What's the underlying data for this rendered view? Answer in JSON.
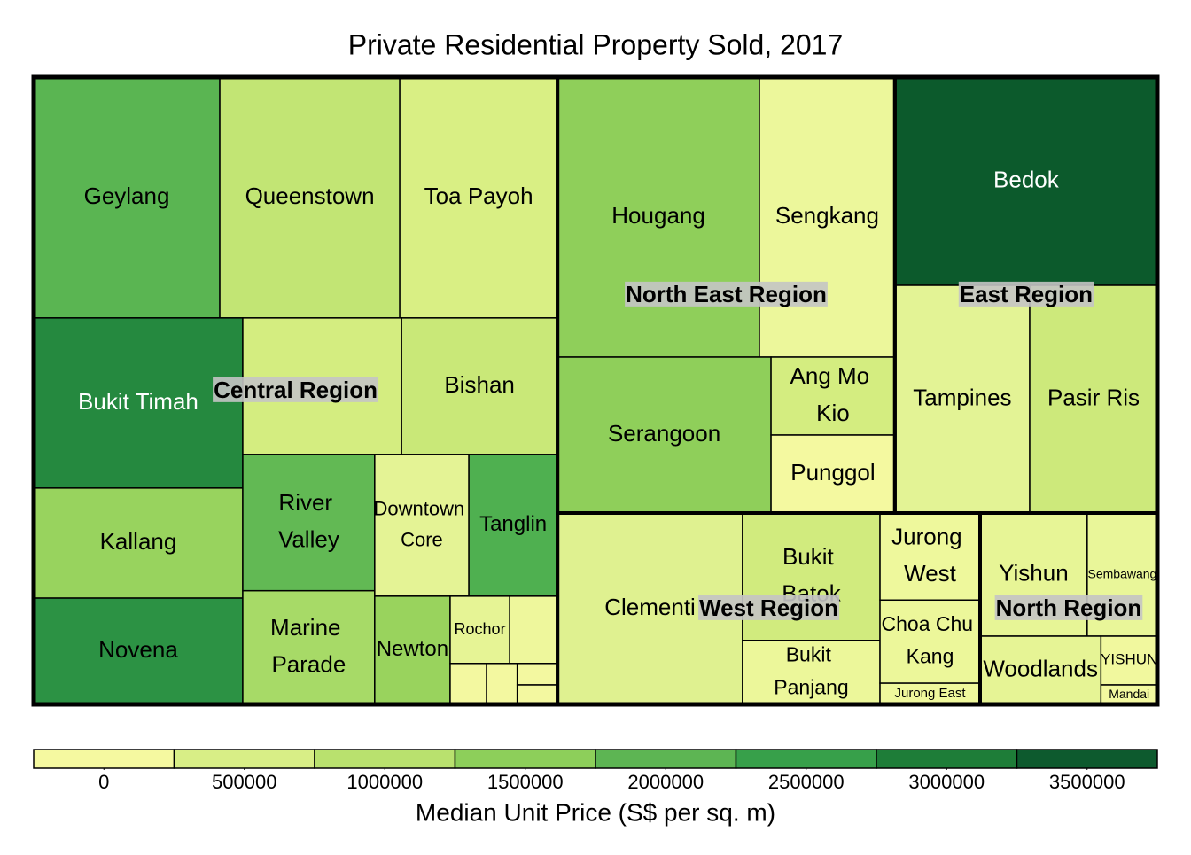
{
  "chart_data": {
    "type": "treemap",
    "title": "Private Residential Property Sold, 2017",
    "regions": [
      {
        "name": "Central Region",
        "children": [
          {
            "name": "Geylang",
            "size": 571,
            "color": "#5ab552"
          },
          {
            "name": "Queenstown",
            "size": 552,
            "color": "#c2e574"
          },
          {
            "name": "Toa Payoh",
            "size": 484,
            "color": "#d9ef84"
          },
          {
            "name": "Bukit Timah",
            "size": 453,
            "color": "#25893f"
          },
          {
            "name": "Kallang",
            "size": 293,
            "color": "#98d35e"
          },
          {
            "name": "Novena",
            "size": 283,
            "color": "#2c9244"
          },
          {
            "name": null,
            "size": 276,
            "color": "#d4ed80"
          },
          {
            "name": "Bishan",
            "size": 271,
            "color": "#c9e878"
          },
          {
            "name": "River Valley",
            "size": 229,
            "color": "#62b954"
          },
          {
            "name": "Marine Parade",
            "size": 191,
            "color": "#a7da67"
          },
          {
            "name": "Downtown Core",
            "size": 170,
            "color": "#e4f395"
          },
          {
            "name": "Tanglin",
            "size": 160,
            "color": "#4fb050"
          },
          {
            "name": "Newton",
            "size": 104,
            "color": "#99d35d"
          },
          {
            "name": "Rochor",
            "size": 51,
            "color": "#e6f495"
          },
          {
            "name": null,
            "size": 41,
            "color": "#eef79c"
          },
          {
            "name": null,
            "size": 19,
            "color": "#f3f8a0"
          },
          {
            "name": null,
            "size": 16,
            "color": "#f3f8a0"
          },
          {
            "name": null,
            "size": 11,
            "color": "#f3f8a0"
          },
          {
            "name": null,
            "size": 10,
            "color": "#f3f8a0"
          }
        ]
      },
      {
        "name": "North East Region",
        "children": [
          {
            "name": "Hougang",
            "size": 720,
            "color": "#8fcf5a"
          },
          {
            "name": "Sengkang",
            "size": 483,
            "color": "#ecf79b"
          },
          {
            "name": "Serangoon",
            "size": 424,
            "color": "#8fcf5a"
          },
          {
            "name": "Ang Mo Kio",
            "size": 123,
            "color": "#d4ed80"
          },
          {
            "name": "Punggol",
            "size": 123,
            "color": "#f4f9a0"
          }
        ]
      },
      {
        "name": "East Region",
        "children": [
          {
            "name": "Bedok",
            "size": 696,
            "color": "#0c5a2c"
          },
          {
            "name": "Tampines",
            "size": 391,
            "color": "#e3f395"
          },
          {
            "name": "Pasir Ris",
            "size": 370,
            "color": "#cde97b"
          }
        ]
      },
      {
        "name": "West Region",
        "children": [
          {
            "name": "Clementi",
            "size": 451,
            "color": "#dff190"
          },
          {
            "name": "Bukit Batok",
            "size": 223,
            "color": "#d1eb7e"
          },
          {
            "name": "Bukit Panjang",
            "size": 112,
            "color": "#ecf79a"
          },
          {
            "name": "Jurong West",
            "size": 111,
            "color": "#eef89c"
          },
          {
            "name": "Choa Chu Kang",
            "size": 106,
            "color": "#ecf79a"
          },
          {
            "name": "Jurong East",
            "size": 27,
            "color": "#eff89c"
          }
        ]
      },
      {
        "name": "North Region",
        "children": [
          {
            "name": "Yishun",
            "size": 168,
            "color": "#e7f596"
          },
          {
            "name": "Sembawang",
            "size": 110,
            "color": "#e9f699"
          },
          {
            "name": "Woodlands",
            "size": 105,
            "color": "#e6f495"
          },
          {
            "name": "YISHUN",
            "size": 35,
            "color": "#f1f89e"
          },
          {
            "name": "Mandai",
            "size": 14,
            "color": "#f3f9a0"
          }
        ]
      }
    ],
    "colorbar": {
      "title": "Median Unit Price (S$ per sq. m)",
      "lim": [
        -250000,
        3750000
      ],
      "ticks": [
        0,
        500000,
        1000000,
        1500000,
        2000000,
        2500000,
        3000000,
        3500000
      ],
      "colors": [
        "#f5f9a0",
        "#d8ee86",
        "#b9e16e",
        "#8dcf5a",
        "#5db553",
        "#37a04a",
        "#1e7d38",
        "#0d5a2e"
      ]
    }
  }
}
